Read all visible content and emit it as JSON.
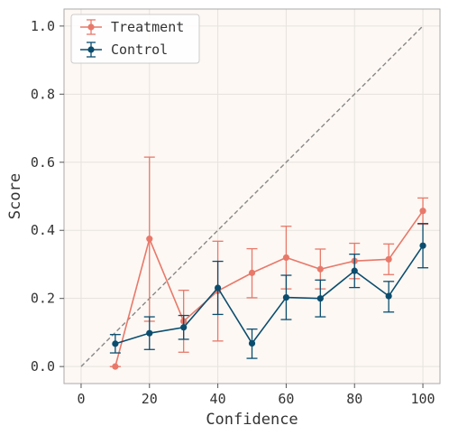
{
  "chart_data": {
    "type": "line",
    "xlabel": "Confidence",
    "ylabel": "Score",
    "xlim": [
      -5,
      105
    ],
    "ylim": [
      -0.05,
      1.05
    ],
    "xticks": [
      0,
      20,
      40,
      60,
      80,
      100
    ],
    "yticks": [
      0.0,
      0.2,
      0.4,
      0.6,
      0.8,
      1.0
    ],
    "xtick_labels": [
      "0",
      "20",
      "40",
      "60",
      "80",
      "100"
    ],
    "ytick_labels": [
      "0.0",
      "0.2",
      "0.4",
      "0.6",
      "0.8",
      "1.0"
    ],
    "grid": true,
    "legend_position": "top-left",
    "reference_line": {
      "x": [
        0,
        100
      ],
      "y": [
        0,
        1
      ],
      "style": "dashed",
      "color": "#888888"
    },
    "x": [
      10,
      20,
      30,
      40,
      50,
      60,
      70,
      80,
      90,
      100
    ],
    "series": [
      {
        "name": "Treatment",
        "color": "#e8796a",
        "values": [
          0.0,
          0.375,
          0.133,
          0.222,
          0.275,
          0.32,
          0.286,
          0.31,
          0.315,
          0.457
        ],
        "err_low": [
          0.0,
          0.133,
          0.042,
          0.075,
          0.202,
          0.228,
          0.228,
          0.258,
          0.27,
          0.418
        ],
        "err_high": [
          0.0,
          0.615,
          0.224,
          0.368,
          0.346,
          0.412,
          0.345,
          0.362,
          0.36,
          0.495
        ]
      },
      {
        "name": "Control",
        "color": "#0b4d6e",
        "values": [
          0.067,
          0.098,
          0.115,
          0.231,
          0.068,
          0.203,
          0.2,
          0.281,
          0.207,
          0.355
        ],
        "err_low": [
          0.04,
          0.05,
          0.08,
          0.153,
          0.024,
          0.138,
          0.146,
          0.232,
          0.16,
          0.29
        ],
        "err_high": [
          0.094,
          0.146,
          0.15,
          0.309,
          0.11,
          0.268,
          0.254,
          0.33,
          0.25,
          0.42
        ]
      }
    ]
  },
  "colors": {
    "plot_background": "#fdf8f4",
    "grid": "#e6e2de",
    "spine": "#aaaaaa"
  }
}
